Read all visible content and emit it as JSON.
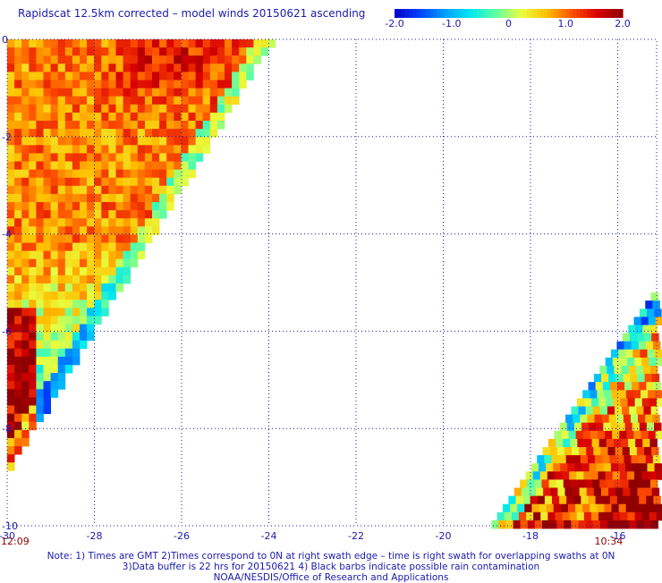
{
  "title": "Rapidscat 12.5km corrected – model winds 20150621 ascending",
  "colorbar": {
    "ticks": [
      {
        "label": "-2.0",
        "value": -2.0
      },
      {
        "label": "-1.0",
        "value": -1.0
      },
      {
        "label": "0",
        "value": 0
      },
      {
        "label": "1.0",
        "value": 1.0
      },
      {
        "label": "2.0",
        "value": 2.0
      }
    ],
    "range": [
      -2.0,
      2.0
    ],
    "palette": [
      "#0000c8",
      "#0040ff",
      "#00a0ff",
      "#00e8f0",
      "#60ffa0",
      "#e8ff40",
      "#ffc000",
      "#ff5000",
      "#d80000",
      "#900000"
    ]
  },
  "map": {
    "lon_range": [
      -30,
      -15
    ],
    "lat_range": [
      -10,
      0
    ],
    "x_ticks": [
      {
        "label": "-30",
        "value": -30
      },
      {
        "label": "-28",
        "value": -28
      },
      {
        "label": "-26",
        "value": -26
      },
      {
        "label": "-24",
        "value": -24
      },
      {
        "label": "-22",
        "value": -22
      },
      {
        "label": "-20",
        "value": -20
      },
      {
        "label": "-18",
        "value": -18
      },
      {
        "label": "-16",
        "value": -16
      }
    ],
    "y_ticks": [
      {
        "label": "0",
        "value": 0
      },
      {
        "label": "-2",
        "value": -2
      },
      {
        "label": "-4",
        "value": -4
      },
      {
        "label": "-6",
        "value": -6
      },
      {
        "label": "-8",
        "value": -8
      },
      {
        "label": "-10",
        "value": -10
      }
    ],
    "grid": "dotted",
    "swaths": [
      {
        "name": "left",
        "time": "12:09",
        "time_lon": -30
      },
      {
        "name": "right",
        "time": "10:34",
        "time_lon": -16
      }
    ]
  },
  "notes": [
    "Note: 1) Times are GMT 2)Times correspond to 0N at right swath edge – time is right swath for overlapping swaths at 0N",
    "3)Data buffer is 22 hrs for 20150621 4) Black barbs indicate possible rain contamination",
    "NOAA/NESDIS/Office of Research and Applications"
  ]
}
